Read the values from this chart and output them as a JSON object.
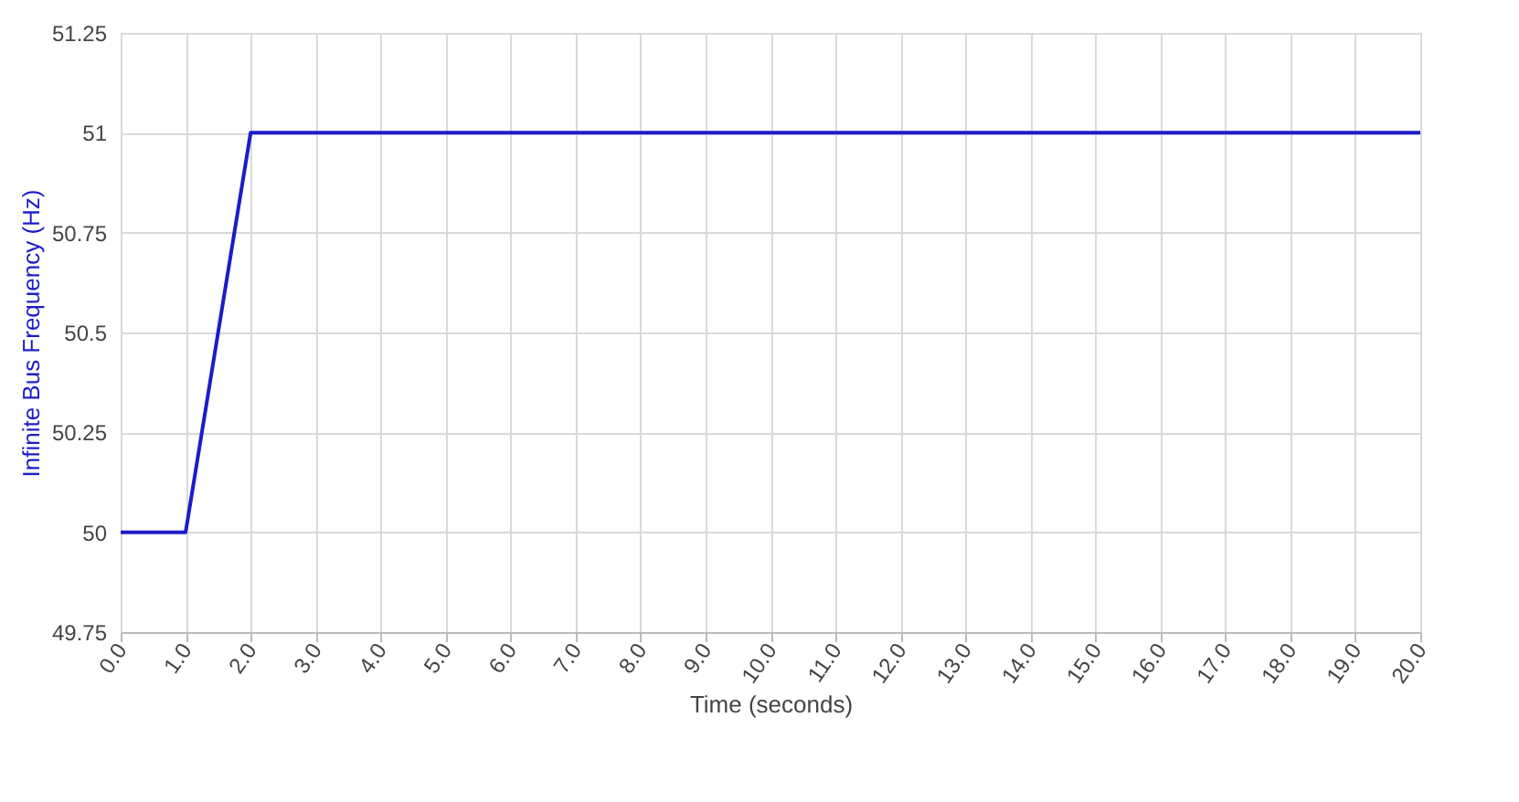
{
  "chart_data": {
    "type": "line",
    "xlabel": "Time (seconds)",
    "ylabel": "Infinite Bus Frequency (Hz)",
    "x": [
      0,
      1,
      2,
      20
    ],
    "series": [
      {
        "color": "#1c1cc8",
        "values": [
          50,
          50,
          51,
          51
        ]
      }
    ],
    "xlim": [
      0,
      20
    ],
    "ylim": [
      49.75,
      51.25
    ],
    "xticks": [
      {
        "value": 0,
        "label": "0.0"
      },
      {
        "value": 1,
        "label": "1.0"
      },
      {
        "value": 2,
        "label": "2.0"
      },
      {
        "value": 3,
        "label": "3.0"
      },
      {
        "value": 4,
        "label": "4.0"
      },
      {
        "value": 5,
        "label": "5.0"
      },
      {
        "value": 6,
        "label": "6.0"
      },
      {
        "value": 7,
        "label": "7.0"
      },
      {
        "value": 8,
        "label": "8.0"
      },
      {
        "value": 9,
        "label": "9.0"
      },
      {
        "value": 10,
        "label": "10.0"
      },
      {
        "value": 11,
        "label": "11.0"
      },
      {
        "value": 12,
        "label": "12.0"
      },
      {
        "value": 13,
        "label": "13.0"
      },
      {
        "value": 14,
        "label": "14.0"
      },
      {
        "value": 15,
        "label": "15.0"
      },
      {
        "value": 16,
        "label": "16.0"
      },
      {
        "value": 17,
        "label": "17.0"
      },
      {
        "value": 18,
        "label": "18.0"
      },
      {
        "value": 19,
        "label": "19.0"
      },
      {
        "value": 20,
        "label": "20.0"
      }
    ],
    "yticks": [
      49.75,
      50,
      50.25,
      50.5,
      50.75,
      51,
      51.25
    ],
    "grid": true,
    "marker": "none",
    "line_style": "solid"
  }
}
